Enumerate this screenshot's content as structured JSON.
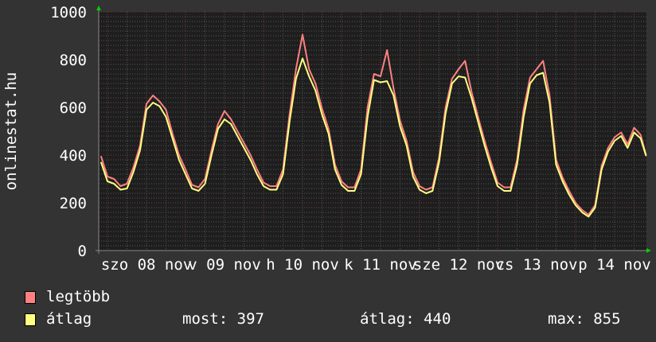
{
  "chart_data": {
    "type": "line",
    "ylabel": "onlinestat.hu",
    "ylim": [
      0,
      1000
    ],
    "yticks": [
      "0",
      "200",
      "400",
      "600",
      "800",
      "1000"
    ],
    "xlim": [
      "11-07 21:18",
      "11-14 21:48"
    ],
    "xtick_labels": [
      {
        "label": "szo 08 nov",
        "at": "11-08 12:00"
      },
      {
        "label": "v 09 nov",
        "at": "11-09 12:00"
      },
      {
        "label": "h 10 nov",
        "at": "11-10 12:00"
      },
      {
        "label": "k 11 nov",
        "at": "11-11 12:00"
      },
      {
        "label": "sze 12 nov",
        "at": "11-12 12:00"
      },
      {
        "label": "cs 13 nov",
        "at": "11-13 12:00"
      },
      {
        "label": "p 14 nov",
        "at": "11-14 12:00"
      }
    ],
    "grid": true,
    "colors": {
      "background": "#333333",
      "plot": "#1e1e1e",
      "minor_grid": "#555555",
      "major_grid": "#7a3a3a",
      "arrow": "#00d000"
    },
    "x": [
      "11-07 22:00",
      "11-08 00:00",
      "11-08 02:00",
      "11-08 04:00",
      "11-08 06:00",
      "11-08 08:00",
      "11-08 10:00",
      "11-08 12:00",
      "11-08 14:00",
      "11-08 16:00",
      "11-08 18:00",
      "11-08 20:00",
      "11-08 22:00",
      "11-09 00:00",
      "11-09 02:00",
      "11-09 04:00",
      "11-09 06:00",
      "11-09 08:00",
      "11-09 10:00",
      "11-09 12:00",
      "11-09 14:00",
      "11-09 16:00",
      "11-09 18:00",
      "11-09 20:00",
      "11-09 22:00",
      "11-10 00:00",
      "11-10 02:00",
      "11-10 04:00",
      "11-10 06:00",
      "11-10 08:00",
      "11-10 10:00",
      "11-10 12:00",
      "11-10 14:00",
      "11-10 16:00",
      "11-10 18:00",
      "11-10 20:00",
      "11-10 22:00",
      "11-11 00:00",
      "11-11 02:00",
      "11-11 04:00",
      "11-11 06:00",
      "11-11 08:00",
      "11-11 10:00",
      "11-11 12:00",
      "11-11 14:00",
      "11-11 16:00",
      "11-11 18:00",
      "11-11 20:00",
      "11-11 22:00",
      "11-12 00:00",
      "11-12 02:00",
      "11-12 04:00",
      "11-12 06:00",
      "11-12 08:00",
      "11-12 10:00",
      "11-12 12:00",
      "11-12 14:00",
      "11-12 16:00",
      "11-12 18:00",
      "11-12 20:00",
      "11-12 22:00",
      "11-13 00:00",
      "11-13 02:00",
      "11-13 04:00",
      "11-13 06:00",
      "11-13 08:00",
      "11-13 10:00",
      "11-13 12:00",
      "11-13 14:00",
      "11-13 16:00",
      "11-13 18:00",
      "11-13 20:00",
      "11-13 22:00",
      "11-14 00:00",
      "11-14 02:00",
      "11-14 04:00",
      "11-14 06:00",
      "11-14 08:00",
      "11-14 10:00",
      "11-14 12:00",
      "11-14 14:00",
      "11-14 16:00",
      "11-14 18:00",
      "11-14 20:00",
      "11-14 21:40"
    ],
    "series": [
      {
        "name": "legtöbb",
        "color": "#ff8080",
        "values": [
          395,
          310,
          300,
          270,
          280,
          350,
          440,
          615,
          650,
          625,
          590,
          490,
          400,
          340,
          275,
          265,
          300,
          420,
          530,
          585,
          550,
          500,
          450,
          400,
          340,
          285,
          270,
          270,
          340,
          570,
          760,
          905,
          760,
          700,
          595,
          510,
          360,
          290,
          265,
          265,
          340,
          600,
          740,
          730,
          840,
          680,
          545,
          460,
          330,
          270,
          255,
          265,
          390,
          600,
          720,
          760,
          795,
          665,
          560,
          460,
          370,
          285,
          265,
          265,
          380,
          590,
          725,
          760,
          795,
          650,
          380,
          305,
          250,
          200,
          170,
          150,
          190,
          355,
          430,
          475,
          495,
          445,
          515,
          485,
          400
        ]
      },
      {
        "name": "átlag",
        "color": "#ffff80",
        "values": [
          370,
          290,
          280,
          255,
          260,
          330,
          420,
          590,
          620,
          605,
          560,
          470,
          380,
          320,
          260,
          250,
          280,
          400,
          510,
          550,
          530,
          480,
          430,
          380,
          320,
          270,
          255,
          255,
          320,
          540,
          720,
          805,
          730,
          670,
          570,
          490,
          340,
          275,
          250,
          250,
          320,
          560,
          715,
          705,
          710,
          650,
          520,
          440,
          310,
          255,
          240,
          250,
          370,
          575,
          700,
          730,
          725,
          640,
          540,
          440,
          350,
          270,
          250,
          250,
          360,
          560,
          700,
          735,
          745,
          620,
          360,
          290,
          235,
          190,
          160,
          142,
          180,
          340,
          415,
          460,
          480,
          430,
          495,
          470,
          397
        ]
      }
    ]
  },
  "legend": {
    "max_label": "legtöbb",
    "avg_label": "átlag",
    "most": "most: 397",
    "atlag": "átlag: 440",
    "max": "max: 855"
  }
}
